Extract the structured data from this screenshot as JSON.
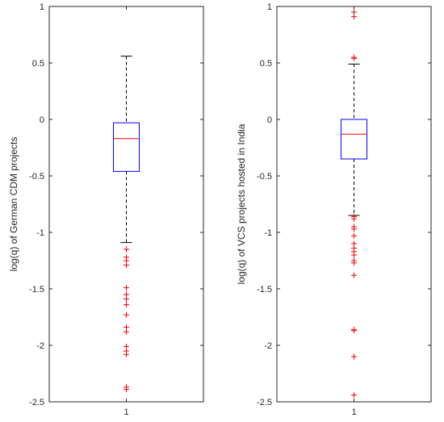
{
  "chart_data": [
    {
      "type": "box",
      "ylabel": "log(q) of German CDM projects",
      "categories": [
        "1"
      ],
      "ylim": [
        -2.5,
        1
      ],
      "yticks": [
        "1",
        "0.5",
        "0",
        "-0.5",
        "-1",
        "-1.5",
        "-2",
        "-2.5"
      ],
      "box": {
        "q1": -0.46,
        "median": -0.17,
        "q3": -0.03,
        "whisker_low": -1.09,
        "whisker_high": 0.56
      },
      "outliers": [
        -1.15,
        -1.22,
        -1.25,
        -1.29,
        -1.49,
        -1.55,
        -1.59,
        -1.64,
        -1.73,
        -1.84,
        -1.88,
        -2.01,
        -2.05,
        -2.08,
        -2.37,
        -2.39
      ],
      "colors": {
        "box": "#0000ff",
        "median": "#ff0000",
        "whisker": "#000000",
        "outlier": "#ff0000"
      }
    },
    {
      "type": "box",
      "ylabel": "log(q) of VCS projects hosted in India",
      "categories": [
        "1"
      ],
      "ylim": [
        -2.5,
        1
      ],
      "yticks": [
        "1",
        "0.5",
        "0",
        "-0.5",
        "-1",
        "-1.5",
        "-2",
        "-2.5"
      ],
      "box": {
        "q1": -0.35,
        "median": -0.13,
        "q3": 0.0,
        "whisker_low": -0.85,
        "whisker_high": 0.49
      },
      "outliers": [
        0.95,
        0.91,
        0.55,
        0.54,
        -0.86,
        -0.88,
        -0.95,
        -0.97,
        -1.03,
        -1.1,
        -1.14,
        -1.17,
        -1.2,
        -1.25,
        -1.27,
        -1.38,
        -1.86,
        -1.87,
        -2.1,
        -2.44
      ],
      "colors": {
        "box": "#0000ff",
        "median": "#ff0000",
        "whisker": "#000000",
        "outlier": "#ff0000"
      }
    }
  ]
}
